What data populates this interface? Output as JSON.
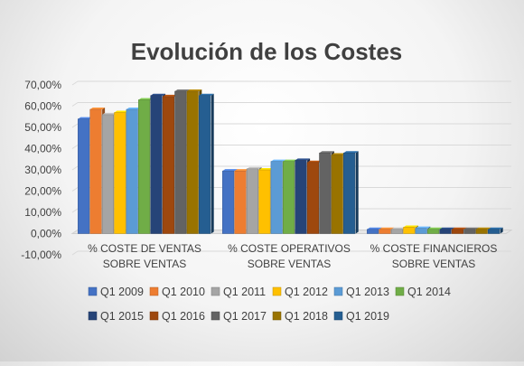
{
  "chart_data": {
    "type": "bar",
    "title": "Evolución de los Costes",
    "categories": [
      [
        "% COSTE DE VENTAS",
        "SOBRE VENTAS"
      ],
      [
        "% COSTE OPERATIVOS",
        "SOBRE VENTAS"
      ],
      [
        "% COSTE FINANCIEROS",
        "SOBRE VENTAS"
      ]
    ],
    "ylim": [
      -10,
      70
    ],
    "yticks": [
      "-10,00%",
      "0,00%",
      "10,00%",
      "20,00%",
      "30,00%",
      "40,00%",
      "50,00%",
      "60,00%",
      "70,00%"
    ],
    "ytick_values": [
      -10,
      0,
      10,
      20,
      30,
      40,
      50,
      60,
      70
    ],
    "grid": true,
    "legend_position": "bottom",
    "three_d": true,
    "series": [
      {
        "name": "Q1 2009",
        "color": "#4472C4",
        "values": [
          54.0,
          29.5,
          2.0
        ]
      },
      {
        "name": "Q1 2010",
        "color": "#ED7D31",
        "values": [
          58.5,
          29.5,
          2.0
        ]
      },
      {
        "name": "Q1 2011",
        "color": "#A5A5A5",
        "values": [
          56.0,
          30.5,
          2.0
        ]
      },
      {
        "name": "Q1 2012",
        "color": "#FFC000",
        "values": [
          57.0,
          30.0,
          3.0
        ]
      },
      {
        "name": "Q1 2013",
        "color": "#5B9BD5",
        "values": [
          58.5,
          34.0,
          2.5
        ]
      },
      {
        "name": "Q1 2014",
        "color": "#70AD47",
        "values": [
          63.0,
          34.0,
          2.0
        ]
      },
      {
        "name": "Q1 2015",
        "color": "#264478",
        "values": [
          65.0,
          34.5,
          2.0
        ]
      },
      {
        "name": "Q1 2016",
        "color": "#9E480E",
        "values": [
          64.5,
          33.5,
          2.0
        ]
      },
      {
        "name": "Q1 2017",
        "color": "#636363",
        "values": [
          67.0,
          38.0,
          2.0
        ]
      },
      {
        "name": "Q1 2018",
        "color": "#997300",
        "values": [
          67.0,
          37.0,
          2.0
        ]
      },
      {
        "name": "Q1 2019",
        "color": "#255E91",
        "values": [
          65.0,
          38.0,
          2.0
        ]
      }
    ]
  }
}
